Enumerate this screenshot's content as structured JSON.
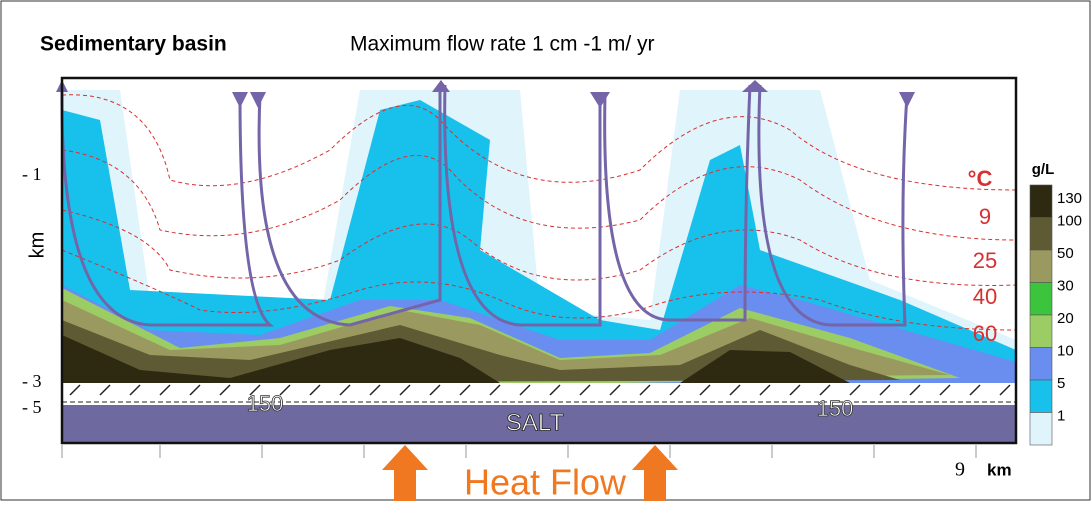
{
  "header": {
    "title": "Sedimentary basin",
    "subtitle": "Maximum flow rate 1 cm -1 m/ yr"
  },
  "depth_axis": {
    "labels": [
      "- 1",
      "- 3",
      "- 5"
    ],
    "unit": "km"
  },
  "isotherms": {
    "unit": "°C",
    "labels": [
      "9",
      "25",
      "40",
      "60"
    ],
    "salt_labels": [
      "150",
      "150"
    ]
  },
  "salt": "SALT",
  "heat_flow": "Heat Flow",
  "distance_axis": {
    "label": "9",
    "unit": "km"
  },
  "legend": {
    "title": "g/L",
    "items": [
      {
        "label": "130",
        "color": "#2e2a12"
      },
      {
        "label": "100",
        "color": "#5e5a34"
      },
      {
        "label": "50",
        "color": "#9a9a60"
      },
      {
        "label": "30",
        "color": "#3cc43c"
      },
      {
        "label": "20",
        "color": "#9ccc64"
      },
      {
        "label": "10",
        "color": "#6a8ef0"
      },
      {
        "label": "5",
        "color": "#18c0ec"
      },
      {
        "label": "1",
        "color": "#e0f4fc"
      }
    ]
  }
}
